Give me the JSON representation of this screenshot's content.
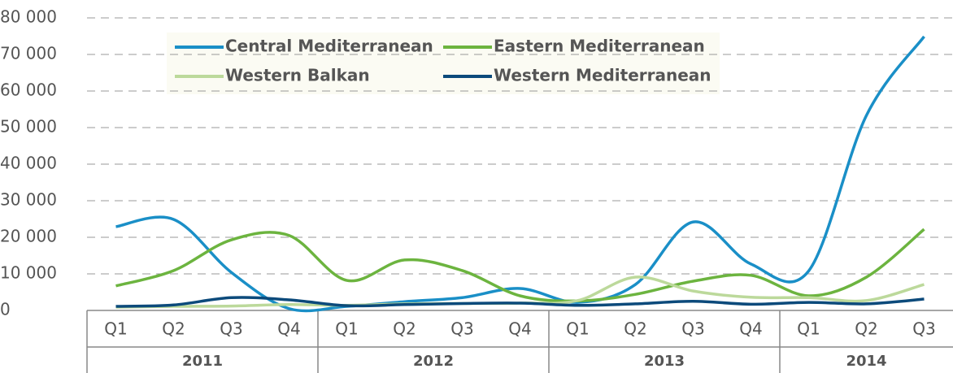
{
  "chart_data": {
    "type": "line",
    "categories": [
      "Q1",
      "Q2",
      "Q3",
      "Q4",
      "Q1",
      "Q2",
      "Q3",
      "Q4",
      "Q1",
      "Q2",
      "Q3",
      "Q4",
      "Q1",
      "Q2",
      "Q3"
    ],
    "year_groups": [
      {
        "label": "2011",
        "count": 4
      },
      {
        "label": "2012",
        "count": 4
      },
      {
        "label": "2013",
        "count": 4
      },
      {
        "label": "2014",
        "count": 3
      }
    ],
    "series": [
      {
        "name": "Central Mediterranean",
        "color": "#1a8fc7",
        "values": [
          22900,
          24900,
          10400,
          500,
          1100,
          2400,
          3500,
          6000,
          2200,
          7100,
          24200,
          12700,
          10800,
          53300,
          74900
        ]
      },
      {
        "name": "Eastern Mediterranean",
        "color": "#6cb43f",
        "values": [
          6700,
          10900,
          19300,
          20500,
          8200,
          13800,
          10900,
          4000,
          2600,
          4400,
          8000,
          9600,
          4000,
          9100,
          22200
        ]
      },
      {
        "name": "Western Balkan",
        "color": "#bcd99b",
        "values": [
          900,
          1100,
          1200,
          1600,
          1400,
          1800,
          1900,
          2000,
          2700,
          9100,
          5300,
          3600,
          3500,
          2700,
          7100
        ]
      },
      {
        "name": "Western Mediterranean",
        "color": "#0c4a7b",
        "values": [
          1100,
          1500,
          3500,
          2900,
          1300,
          1600,
          1900,
          2000,
          1400,
          1800,
          2500,
          1700,
          2200,
          1800,
          3100
        ]
      }
    ],
    "ylim": [
      0,
      80000
    ],
    "yticks": [
      0,
      {
        "value": 10000,
        "label": "10 000"
      },
      {
        "value": 20000,
        "label": "20 000"
      },
      {
        "value": 30000,
        "label": "30 000"
      },
      {
        "value": 40000,
        "label": "40 000"
      },
      {
        "value": 50000,
        "label": "50 000"
      },
      {
        "value": 60000,
        "label": "60 000"
      },
      {
        "value": 70000,
        "label": "70 000"
      },
      {
        "value": 80000,
        "label": "80 000"
      }
    ],
    "grid": true
  }
}
